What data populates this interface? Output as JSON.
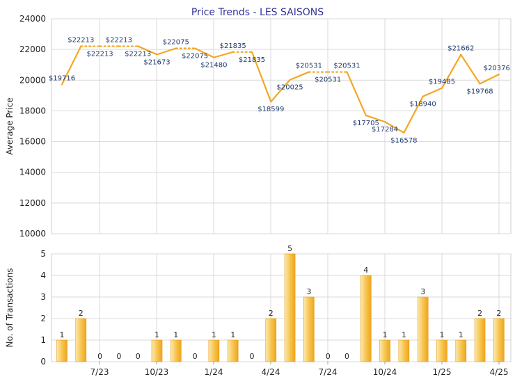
{
  "title": "Price Trends - LES SAISONS",
  "colors": {
    "line": "#F5A623",
    "bar_light": "#FDE6A6",
    "bar_dark": "#EFA51F",
    "grid": "#D9D9D9",
    "axis": "#999999",
    "label_text": "#1F3A70",
    "title_text": "#333399"
  },
  "x_tick_labels": [
    "7/23",
    "10/23",
    "1/24",
    "4/24",
    "7/24",
    "10/24",
    "1/25",
    "4/25"
  ],
  "chart_data": [
    {
      "type": "line",
      "title": "Price Trends - LES SAISONS",
      "ylabel": "Average Price",
      "ylim": [
        10000,
        24000
      ],
      "yticks": [
        10000,
        12000,
        14000,
        16000,
        18000,
        20000,
        22000,
        24000
      ],
      "grid": true,
      "points": [
        {
          "label": "$19716",
          "y": 19716,
          "solid": true
        },
        {
          "label": "$22213",
          "y": 22213,
          "solid": true
        },
        {
          "label": "$22213",
          "y": 22213,
          "solid": false
        },
        {
          "label": "$22213",
          "y": 22213,
          "solid": false
        },
        {
          "label": "$22213",
          "y": 22213,
          "solid": false
        },
        {
          "label": "$21673",
          "y": 21673,
          "solid": true
        },
        {
          "label": "$22075",
          "y": 22075,
          "solid": true
        },
        {
          "label": "$22075",
          "y": 22075,
          "solid": false
        },
        {
          "label": "$21480",
          "y": 21480,
          "solid": true
        },
        {
          "label": "$21835",
          "y": 21835,
          "solid": true
        },
        {
          "label": "$21835",
          "y": 21835,
          "solid": false
        },
        {
          "label": "$18599",
          "y": 18599,
          "solid": true
        },
        {
          "label": "$20025",
          "y": 20025,
          "solid": true
        },
        {
          "label": "$20531",
          "y": 20531,
          "solid": true
        },
        {
          "label": "$20531",
          "y": 20531,
          "solid": false
        },
        {
          "label": "$20531",
          "y": 20531,
          "solid": false
        },
        {
          "label": "$17705",
          "y": 17705,
          "solid": true
        },
        {
          "label": "$17284",
          "y": 17284,
          "solid": true
        },
        {
          "label": "$16578",
          "y": 16578,
          "solid": true
        },
        {
          "label": "$18940",
          "y": 18940,
          "solid": true
        },
        {
          "label": "$19485",
          "y": 19485,
          "solid": true
        },
        {
          "label": "$21662",
          "y": 21662,
          "solid": true
        },
        {
          "label": "$19768",
          "y": 19768,
          "solid": true
        },
        {
          "label": "$20376",
          "y": 20376,
          "solid": true
        }
      ]
    },
    {
      "type": "bar",
      "ylabel": "No. of Transactions",
      "ylim": [
        0,
        5
      ],
      "yticks": [
        0,
        1,
        2,
        3,
        4,
        5
      ],
      "grid": true,
      "values": [
        1,
        2,
        0,
        0,
        0,
        1,
        1,
        0,
        1,
        1,
        0,
        2,
        5,
        3,
        0,
        0,
        4,
        1,
        1,
        3,
        1,
        1,
        2,
        2
      ]
    }
  ]
}
